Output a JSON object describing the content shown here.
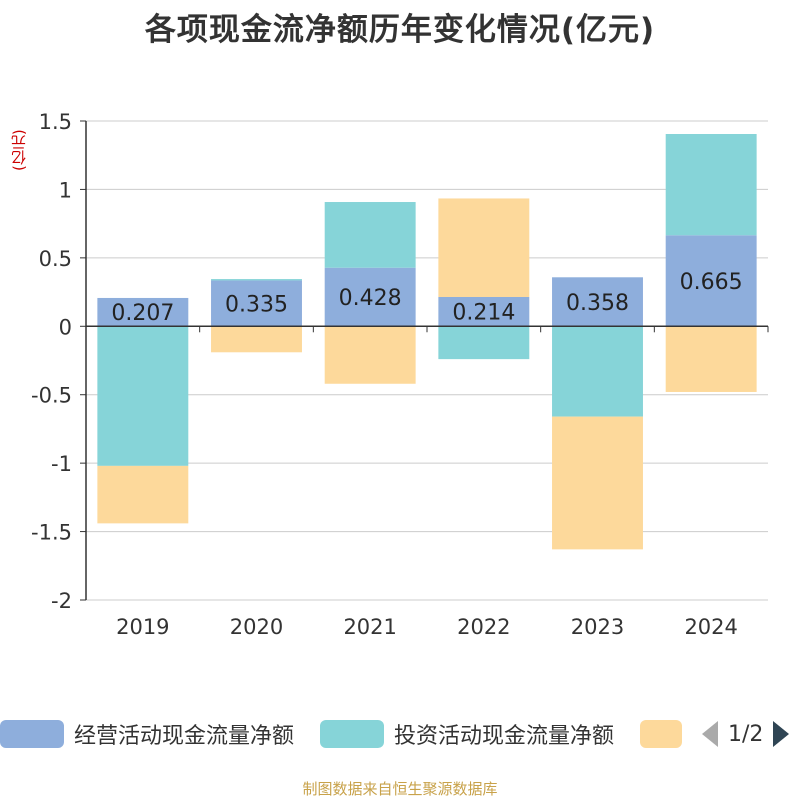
{
  "title": "各项现金流净额历年变化情况(亿元)",
  "unit": "(亿元)",
  "source": "制图数据来自恒生聚源数据库",
  "legend": {
    "items": [
      {
        "label": "经营活动现金流量净额",
        "color": "#8eaedc"
      },
      {
        "label": "投资活动现金流量净额",
        "color": "#86d4d8"
      },
      {
        "label": "",
        "color": "#fdd99b"
      }
    ],
    "page": "1/2"
  },
  "chart_data": {
    "type": "bar",
    "stacked": true,
    "categories": [
      "2019",
      "2020",
      "2021",
      "2022",
      "2023",
      "2024"
    ],
    "ylim": [
      -2,
      1.5
    ],
    "yticks": [
      "1.5",
      "1",
      "0.5",
      "0",
      "-0.5",
      "-1",
      "-1.5",
      "-2"
    ],
    "grid": true,
    "series": [
      {
        "name": "经营活动现金流量净额",
        "color": "#8eaedc",
        "values": [
          0.207,
          0.335,
          0.428,
          0.214,
          0.358,
          0.665
        ],
        "labels": [
          "0.207",
          "0.335",
          "0.428",
          "0.214",
          "0.358",
          "0.665"
        ]
      },
      {
        "name": "投资活动现金流量净额",
        "color": "#86d4d8",
        "values": [
          -1.02,
          0.01,
          0.48,
          -0.24,
          -0.66,
          0.74
        ]
      },
      {
        "name": "",
        "color": "#fdd99b",
        "values": [
          -0.42,
          -0.19,
          -0.42,
          0.72,
          -0.97,
          -0.48
        ]
      }
    ]
  }
}
